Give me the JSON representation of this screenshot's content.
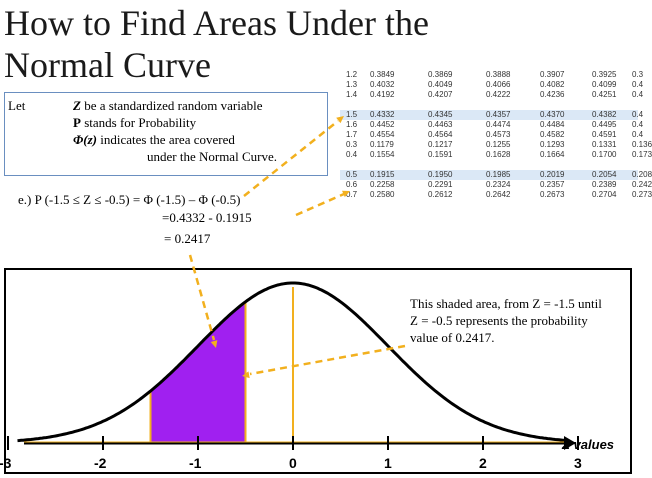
{
  "title": {
    "line1": "How to Find Areas Under the",
    "line2": "Normal Curve"
  },
  "definitions": {
    "let": "Let",
    "z_var": "Z",
    "z_text": " be a standardized random variable",
    "p_var": "P",
    "p_text": " stands for Probability",
    "phi_var": "Φ(z)",
    "phi_text": " indicates the area covered",
    "phi_text2": "under the Normal Curve."
  },
  "ztable": {
    "rows": [
      [
        "1.2",
        "0.3849",
        "0.3869",
        "0.3888",
        "0.3907",
        "0.3925",
        "0.3"
      ],
      [
        "1.3",
        "0.4032",
        "0.4049",
        "0.4066",
        "0.4082",
        "0.4099",
        "0.4"
      ],
      [
        "1.4",
        "0.4192",
        "0.4207",
        "0.4222",
        "0.4236",
        "0.4251",
        "0.4"
      ],
      [
        "",
        "",
        "",
        "",
        "",
        "",
        ""
      ],
      [
        "1.5",
        "0.4332",
        "0.4345",
        "0.4357",
        "0.4370",
        "0.4382",
        "0.4"
      ],
      [
        "1.6",
        "0.4452",
        "0.4463",
        "0.4474",
        "0.4484",
        "0.4495",
        "0.4"
      ],
      [
        "1.7",
        "0.4554",
        "0.4564",
        "0.4573",
        "0.4582",
        "0.4591",
        "0.4"
      ],
      [
        "0.3",
        "0.1179",
        "0.1217",
        "0.1255",
        "0.1293",
        "0.1331",
        "0.136"
      ],
      [
        "0.4",
        "0.1554",
        "0.1591",
        "0.1628",
        "0.1664",
        "0.1700",
        "0.173"
      ],
      [
        "",
        "",
        "",
        "",
        "",
        "",
        ""
      ],
      [
        "0.5",
        "0.1915",
        "0.1950",
        "0.1985",
        "0.2019",
        "0.2054",
        "0.208"
      ],
      [
        "0.6",
        "0.2258",
        "0.2291",
        "0.2324",
        "0.2357",
        "0.2389",
        "0.242"
      ],
      [
        "0.7",
        "0.2580",
        "0.2612",
        "0.2642",
        "0.2673",
        "0.2704",
        "0.273"
      ]
    ]
  },
  "equation": {
    "line1": "e.) P (-1.5 ≤ Z ≤ -0.5)  = Φ (-1.5) – Φ (-0.5)",
    "line2": "=0.4332    - 0.1915",
    "line3": "= 0.2417"
  },
  "annotation": "This shaded area, from Z = -1.5 until Z = -0.5 represents the probability value of 0.2417.",
  "axis": {
    "label": "Z values",
    "ticks": [
      "-3",
      "-2",
      "-1",
      "0",
      "1",
      "2",
      "3"
    ]
  },
  "colors": {
    "shade": "#a020f0",
    "arrow": "#f2b01e",
    "highlight": "#dbe8f6",
    "axis": "#000000"
  },
  "shaded_range": {
    "from": -1.5,
    "to": -0.5
  }
}
